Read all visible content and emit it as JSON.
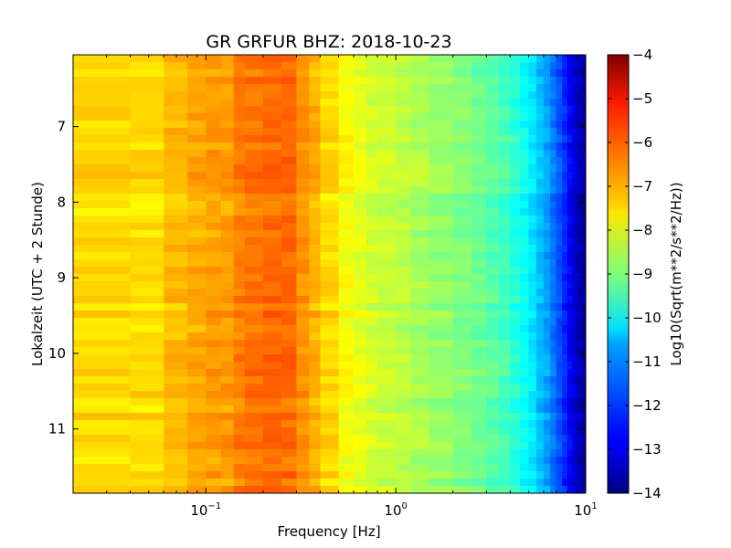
{
  "chart_data": {
    "type": "heatmap",
    "title": "GR GRFUR BHZ: 2018-10-23",
    "xlabel": "Frequency [Hz]",
    "ylabel": "Lokalzeit (UTC + 2 Stunde)",
    "x_scale": "log",
    "xlim": [
      0.02,
      10
    ],
    "ylim": [
      6.05,
      11.85
    ],
    "y_inverted": true,
    "x_ticks": [
      {
        "value": 0.1,
        "base": "10",
        "exp": "−1"
      },
      {
        "value": 1,
        "base": "10",
        "exp": "0"
      },
      {
        "value": 10,
        "base": "10",
        "exp": "1"
      }
    ],
    "y_ticks": [
      7,
      8,
      9,
      10,
      11
    ],
    "colorbar": {
      "label": "Log10(Sqrt(m**2/s**2/Hz))",
      "colormap": "jet",
      "range": [
        -14,
        -4
      ],
      "ticks": [
        -4,
        -5,
        -6,
        -7,
        -8,
        -9,
        -10,
        -11,
        -12,
        -13,
        -14
      ]
    },
    "frequency_bins_hz": [
      0.02,
      0.04,
      0.06,
      0.08,
      0.1,
      0.12,
      0.14,
      0.16,
      0.2,
      0.25,
      0.3,
      0.35,
      0.4,
      0.5,
      0.6,
      0.7,
      0.8,
      1,
      1.2,
      1.5,
      2,
      2.5,
      3,
      3.5,
      4,
      4.5,
      5,
      5.5,
      6,
      6.5,
      7,
      7.5,
      8,
      8.5,
      9,
      9.5,
      10
    ],
    "level_profile": [
      -7.4,
      -7.4,
      -7.1,
      -6.9,
      -6.8,
      -6.8,
      -6.5,
      -6.4,
      -6.3,
      -6.3,
      -6.7,
      -7.0,
      -7.4,
      -7.8,
      -8.0,
      -8.2,
      -8.3,
      -8.4,
      -8.6,
      -8.8,
      -9.0,
      -9.2,
      -9.4,
      -9.6,
      -9.9,
      -10.2,
      -10.5,
      -10.9,
      -11.2,
      -11.6,
      -12.0,
      -12.4,
      -12.8,
      -13.2,
      -13.5,
      -13.7,
      -13.9
    ],
    "time_rows": 60
  }
}
